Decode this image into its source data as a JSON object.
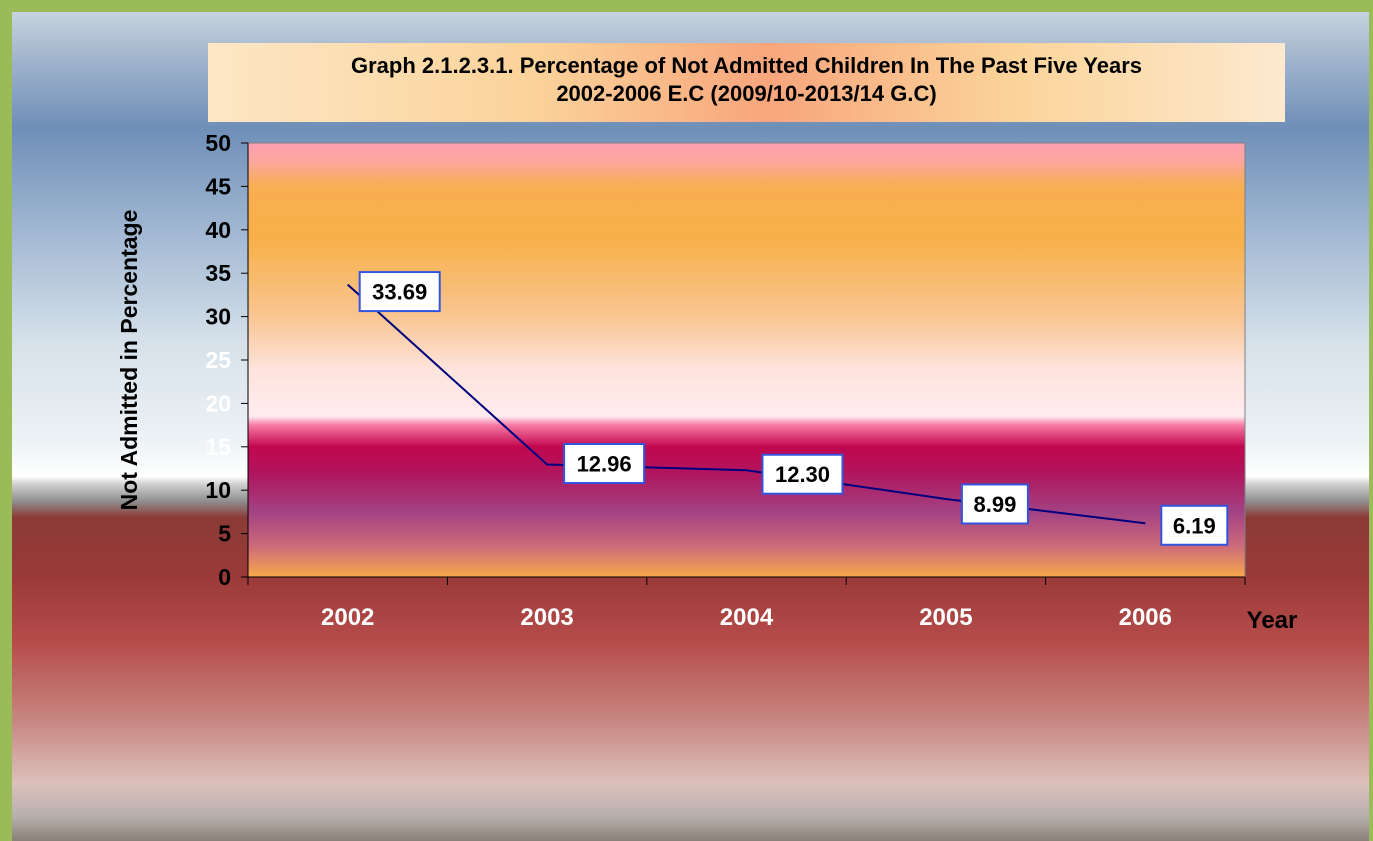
{
  "chart_data": {
    "type": "line",
    "title_line1": "Graph 2.1.2.3.1. Percentage of Not Admitted Children In The Past Five Years",
    "title_line2": "2002-2006 E.C (2009/10-2013/14 G.C)",
    "ylabel": "Not Admitted in Percentage",
    "xlabel": "Year",
    "categories": [
      "2002",
      "2003",
      "2004",
      "2005",
      "2006"
    ],
    "values": [
      33.69,
      12.96,
      12.3,
      8.99,
      6.19
    ],
    "data_labels": [
      "33.69",
      "12.96",
      "12.30",
      "8.99",
      "6.19"
    ],
    "yticks": [
      "0",
      "5",
      "10",
      "15",
      "20",
      "25",
      "30",
      "35",
      "40",
      "45",
      "50"
    ],
    "ylim": [
      0,
      50
    ],
    "line_color": "#00007f",
    "label_border_color": "#3355dd"
  }
}
